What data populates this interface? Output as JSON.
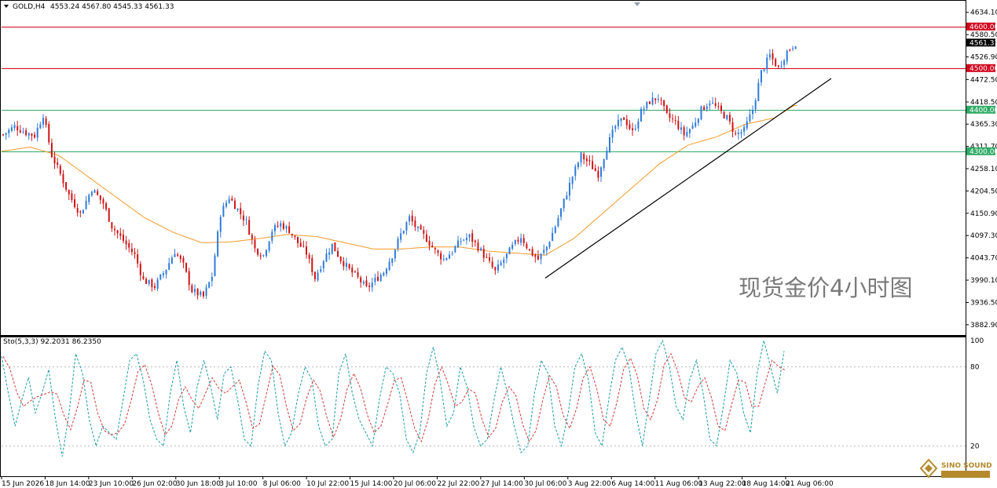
{
  "header": {
    "symbol": "GOLD,H4",
    "ohlc": "4553.24 4567.80 4545.33 4561.33",
    "indicator": "Sto(5,3,3) 92.2031 86.2350"
  },
  "watermark": "现货金价4小时图",
  "logo": {
    "text": "SINO SOUND",
    "color": "#b48a2d"
  },
  "colors": {
    "up": "#2f7ad8",
    "down": "#cc1414",
    "ma": "#f39a2a",
    "resistance": "#d0021b",
    "support": "#2eab66",
    "trendline": "#000000",
    "stoch_main": "#1a9aa6",
    "stoch_signal": "#d13a3a"
  },
  "chart_data": [
    {
      "type": "candlestick",
      "title": "GOLD,H4",
      "ylim": [
        3860,
        4660
      ],
      "y_ticks": [
        "4634.10",
        "4580.50",
        "4526.90",
        "4472.50",
        "4418.50",
        "4365.30",
        "4311.70",
        "4258.10",
        "4204.50",
        "4150.90",
        "4097.30",
        "4043.70",
        "3990.10",
        "3936.50",
        "3882.90"
      ],
      "current_price": "4561.33",
      "x_ticks": [
        "15 Jun 2026",
        "18 Jun 14:00",
        "23 Jun 10:00",
        "26 Jun 02:00",
        "30 Jun 18:00",
        "3 Jul 10:00",
        "8 Jul 06:00",
        "10 Jul 22:00",
        "15 Jul 14:00",
        "20 Jul 06:00",
        "22 Jul 22:00",
        "27 Jul 14:00",
        "30 Jul 06:00",
        "3 Aug 22:00",
        "6 Aug 14:00",
        "11 Aug 06:00",
        "13 Aug 22:00",
        "18 Aug 14:00",
        "21 Aug 06:00"
      ],
      "levels": [
        {
          "value": 4600,
          "label": "4600.00",
          "role": "resistance"
        },
        {
          "value": 4500,
          "label": "4500.00",
          "role": "resistance"
        },
        {
          "value": 4400,
          "label": "4400.00",
          "role": "support"
        },
        {
          "value": 4300,
          "label": "4300.00",
          "role": "support"
        }
      ],
      "close_path": [
        [
          0,
          4340
        ],
        [
          4,
          4360
        ],
        [
          8,
          4345
        ],
        [
          11,
          4338
        ],
        [
          14,
          4388
        ],
        [
          17,
          4290
        ],
        [
          20,
          4245
        ],
        [
          23,
          4195
        ],
        [
          27,
          4150
        ],
        [
          31,
          4210
        ],
        [
          35,
          4175
        ],
        [
          38,
          4120
        ],
        [
          42,
          4085
        ],
        [
          46,
          4050
        ],
        [
          49,
          3990
        ],
        [
          53,
          3975
        ],
        [
          57,
          4018
        ],
        [
          60,
          4060
        ],
        [
          63,
          4025
        ],
        [
          66,
          3965
        ],
        [
          70,
          3950
        ],
        [
          73,
          4000
        ],
        [
          76,
          4150
        ],
        [
          79,
          4190
        ],
        [
          82,
          4160
        ],
        [
          85,
          4130
        ],
        [
          88,
          4065
        ],
        [
          91,
          4050
        ],
        [
          94,
          4110
        ],
        [
          97,
          4125
        ],
        [
          100,
          4110
        ],
        [
          103,
          4080
        ],
        [
          106,
          4055
        ],
        [
          109,
          3995
        ],
        [
          112,
          4040
        ],
        [
          115,
          4075
        ],
        [
          118,
          4040
        ],
        [
          121,
          4015
        ],
        [
          124,
          3995
        ],
        [
          127,
          3970
        ],
        [
          130,
          3990
        ],
        [
          133,
          4010
        ],
        [
          136,
          4050
        ],
        [
          139,
          4100
        ],
        [
          142,
          4140
        ],
        [
          145,
          4110
        ],
        [
          148,
          4090
        ],
        [
          151,
          4060
        ],
        [
          154,
          4040
        ],
        [
          157,
          4060
        ],
        [
          160,
          4085
        ],
        [
          163,
          4095
        ],
        [
          166,
          4070
        ],
        [
          169,
          4040
        ],
        [
          172,
          4010
        ],
        [
          175,
          4040
        ],
        [
          178,
          4070
        ],
        [
          181,
          4095
        ],
        [
          184,
          4060
        ],
        [
          187,
          4040
        ],
        [
          190,
          4070
        ],
        [
          193,
          4120
        ],
        [
          196,
          4180
        ],
        [
          199,
          4240
        ],
        [
          202,
          4290
        ],
        [
          205,
          4270
        ],
        [
          208,
          4245
        ],
        [
          211,
          4310
        ],
        [
          214,
          4360
        ],
        [
          217,
          4380
        ],
        [
          220,
          4345
        ],
        [
          223,
          4395
        ],
        [
          226,
          4420
        ],
        [
          229,
          4430
        ],
        [
          232,
          4385
        ],
        [
          235,
          4370
        ],
        [
          238,
          4340
        ],
        [
          241,
          4360
        ],
        [
          244,
          4400
        ],
        [
          247,
          4420
        ],
        [
          250,
          4400
        ],
        [
          253,
          4380
        ],
        [
          256,
          4340
        ],
        [
          259,
          4350
        ],
        [
          262,
          4400
        ],
        [
          265,
          4490
        ],
        [
          268,
          4530
        ],
        [
          271,
          4500
        ],
        [
          274,
          4540
        ],
        [
          277,
          4561
        ]
      ],
      "ma_path": [
        [
          0,
          4300
        ],
        [
          10,
          4310
        ],
        [
          20,
          4290
        ],
        [
          30,
          4240
        ],
        [
          40,
          4190
        ],
        [
          50,
          4140
        ],
        [
          60,
          4105
        ],
        [
          70,
          4080
        ],
        [
          80,
          4082
        ],
        [
          90,
          4090
        ],
        [
          100,
          4100
        ],
        [
          110,
          4095
        ],
        [
          120,
          4080
        ],
        [
          130,
          4065
        ],
        [
          140,
          4065
        ],
        [
          150,
          4070
        ],
        [
          160,
          4070
        ],
        [
          170,
          4060
        ],
        [
          180,
          4055
        ],
        [
          190,
          4050
        ],
        [
          200,
          4090
        ],
        [
          210,
          4150
        ],
        [
          220,
          4210
        ],
        [
          230,
          4270
        ],
        [
          240,
          4315
        ],
        [
          250,
          4335
        ],
        [
          260,
          4365
        ],
        [
          270,
          4380
        ],
        [
          277,
          4410
        ]
      ],
      "trendline": [
        [
          190,
          3995
        ],
        [
          290,
          4475
        ]
      ]
    },
    {
      "type": "line",
      "title": "Sto(5,3,3) 92.2031 86.2350",
      "ylim": [
        0,
        100
      ],
      "y_ticks": [
        "100",
        "80",
        "20"
      ],
      "main_value": 92.2031,
      "signal_value": 86.235,
      "series": [
        {
          "name": "main",
          "values": [
            88,
            60,
            35,
            55,
            72,
            45,
            60,
            78,
            40,
            12,
            45,
            90,
            75,
            40,
            20,
            35,
            30,
            25,
            55,
            85,
            90,
            70,
            40,
            25,
            20,
            60,
            85,
            50,
            30,
            65,
            85,
            65,
            40,
            75,
            80,
            55,
            25,
            20,
            65,
            92,
            85,
            45,
            20,
            30,
            60,
            80,
            70,
            35,
            20,
            25,
            75,
            90,
            60,
            40,
            30,
            20,
            55,
            80,
            75,
            60,
            25,
            15,
            30,
            75,
            95,
            70,
            35,
            45,
            80,
            65,
            35,
            20,
            25,
            55,
            80,
            60,
            35,
            15,
            20,
            60,
            85,
            75,
            35,
            20,
            45,
            80,
            90,
            70,
            30,
            20,
            55,
            85,
            95,
            80,
            45,
            20,
            55,
            90,
            100,
            80,
            50,
            40,
            70,
            85,
            60,
            25,
            20,
            50,
            85,
            75,
            45,
            30,
            75,
            100,
            80,
            60,
            92
          ]
        }
      ]
    }
  ]
}
